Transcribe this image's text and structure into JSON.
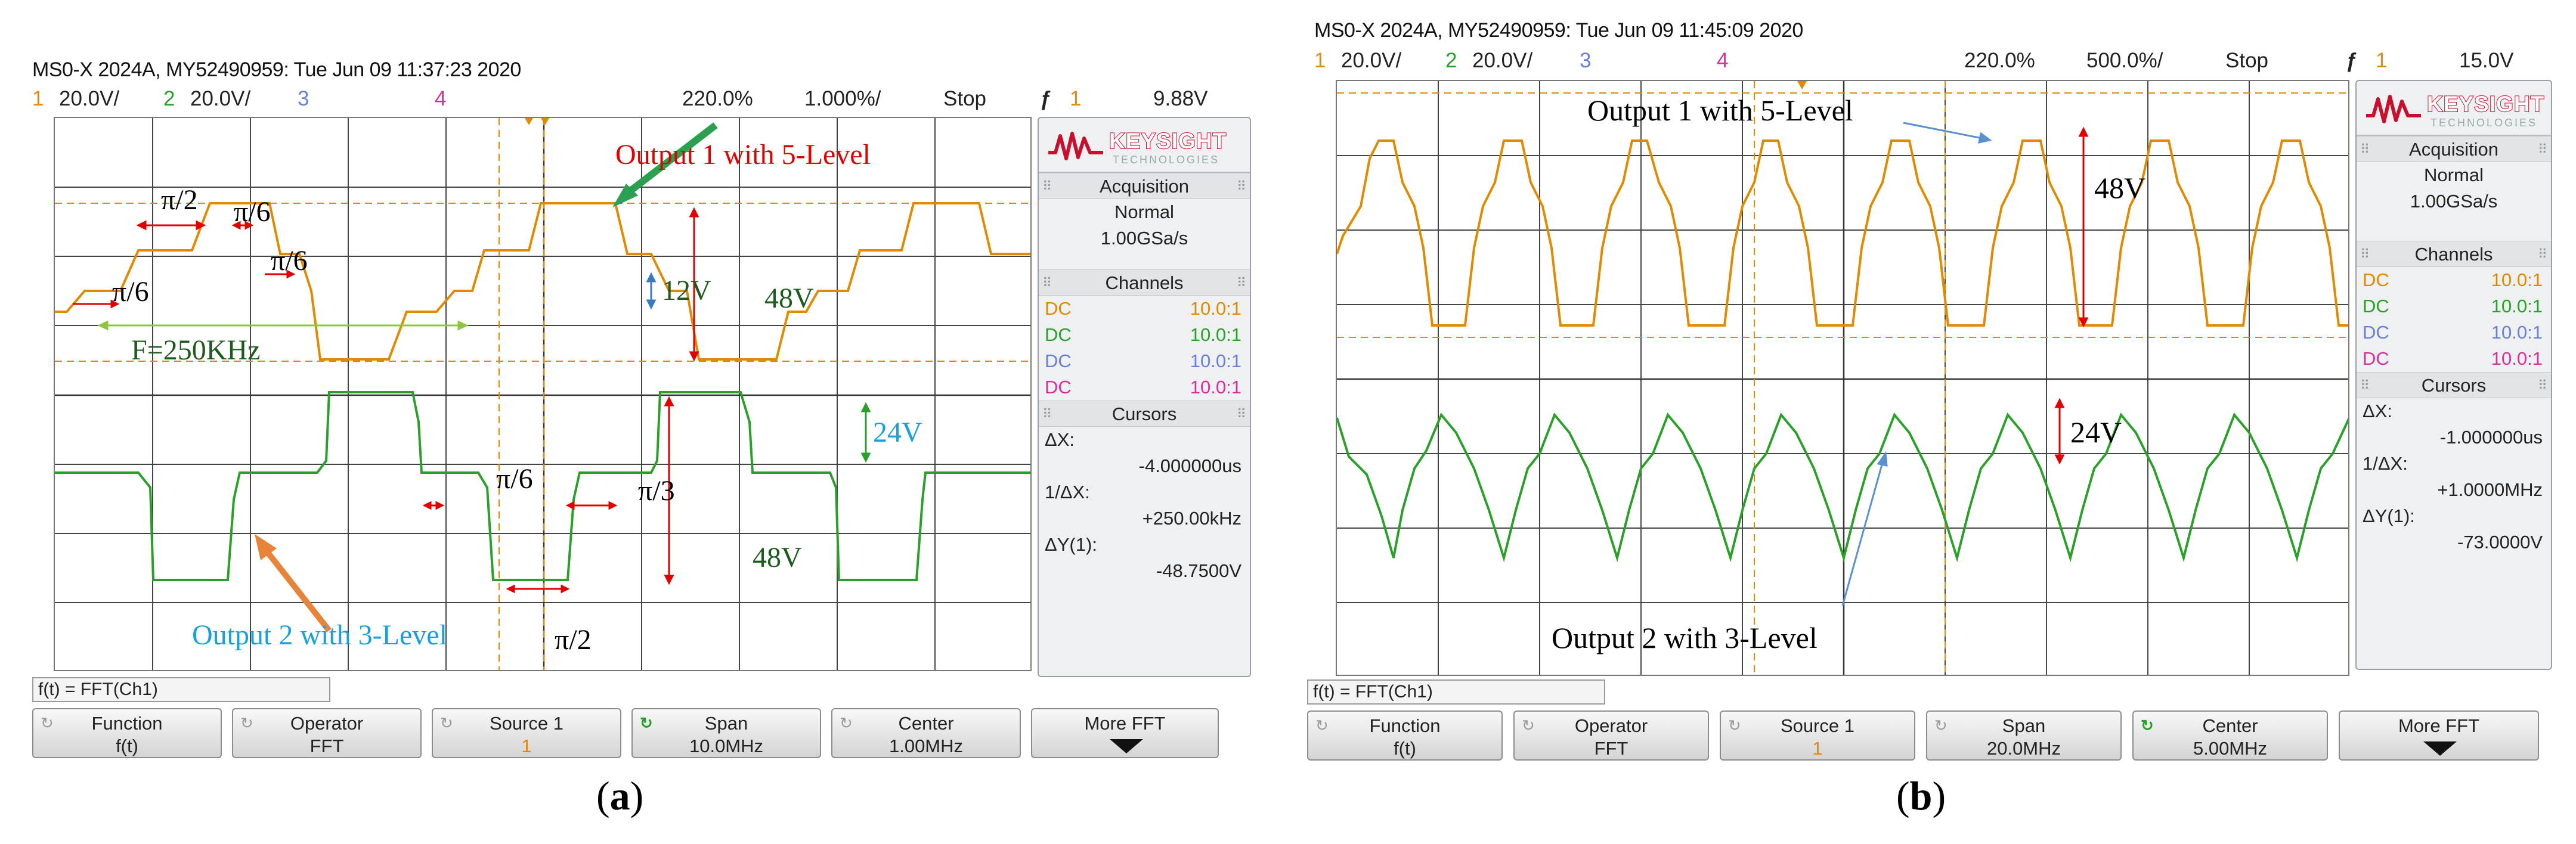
{
  "scope_a": {
    "header": "MS0-X 2024A, MY52490959: Tue Jun 09 11:37:23 2020",
    "status": {
      "ch1_num": "1",
      "ch1_scale": "20.0V/",
      "ch2_num": "2",
      "ch2_scale": "20.0V/",
      "ch3_num": "3",
      "ch4_num": "4",
      "delay": "220.0%",
      "timebase": "1.000%/",
      "run_state": "Stop",
      "trig_src": "1",
      "trig_level": "9.88V"
    },
    "panel": {
      "brand": "KEYSIGHT",
      "brand_sub": "TECHNOLOGIES",
      "acq_title": "Acquisition",
      "acq_mode": "Normal",
      "acq_rate": "1.00GSa/s",
      "ch_title": "Channels",
      "channels": [
        {
          "coupling": "DC",
          "probe": "10.0:1",
          "color": "#e08a00"
        },
        {
          "coupling": "DC",
          "probe": "10.0:1",
          "color": "#2aa02a"
        },
        {
          "coupling": "DC",
          "probe": "10.0:1",
          "color": "#6a7fd8"
        },
        {
          "coupling": "DC",
          "probe": "10.0:1",
          "color": "#d8309a"
        }
      ],
      "cur_title": "Cursors",
      "dx_label": "ΔX:",
      "dx_val": "-4.000000us",
      "inv_label": "1/ΔX:",
      "inv_val": "+250.00kHz",
      "dy_label": "ΔY(1):",
      "dy_val": "-48.7500V"
    },
    "fft_formula": "f(t) = FFT(Ch1)",
    "softkeys": [
      {
        "title": "Function",
        "value": "f(t)"
      },
      {
        "title": "Operator",
        "value": "FFT"
      },
      {
        "title": "Source 1",
        "value": "1"
      },
      {
        "title": "Span",
        "value": "10.0MHz"
      },
      {
        "title": "Center",
        "value": "1.00MHz"
      },
      {
        "title": "More FFT",
        "value": ""
      }
    ],
    "annotations": {
      "out1": "Output 1 with 5-Level",
      "out2": "Output 2 with 3-Level",
      "pi2_top": "π/2",
      "pi6_top": "π/6",
      "pi6_mid": "π/6",
      "pi6_left": "π/6",
      "freq": "F=250KHz",
      "v12": "12V",
      "v48_top": "48V",
      "v24": "24V",
      "pi6_bot": "π/6",
      "pi3_bot": "π/3",
      "v48_bot": "48V",
      "pi2_bot": "π/2"
    },
    "sublabel": "a"
  },
  "scope_b": {
    "header": "MS0-X 2024A, MY52490959: Tue Jun 09 11:45:09 2020",
    "status": {
      "ch1_num": "1",
      "ch1_scale": "20.0V/",
      "ch2_num": "2",
      "ch2_scale": "20.0V/",
      "ch3_num": "3",
      "ch4_num": "4",
      "delay": "220.0%",
      "timebase": "500.0%/",
      "run_state": "Stop",
      "trig_src": "1",
      "trig_level": "15.0V"
    },
    "panel": {
      "brand": "KEYSIGHT",
      "brand_sub": "TECHNOLOGIES",
      "acq_title": "Acquisition",
      "acq_mode": "Normal",
      "acq_rate": "1.00GSa/s",
      "ch_title": "Channels",
      "channels": [
        {
          "coupling": "DC",
          "probe": "10.0:1",
          "color": "#e08a00"
        },
        {
          "coupling": "DC",
          "probe": "10.0:1",
          "color": "#2aa02a"
        },
        {
          "coupling": "DC",
          "probe": "10.0:1",
          "color": "#6a7fd8"
        },
        {
          "coupling": "DC",
          "probe": "10.0:1",
          "color": "#d8309a"
        }
      ],
      "cur_title": "Cursors",
      "dx_label": "ΔX:",
      "dx_val": "-1.000000us",
      "inv_label": "1/ΔX:",
      "inv_val": "+1.0000MHz",
      "dy_label": "ΔY(1):",
      "dy_val": "-73.0000V"
    },
    "fft_formula": "f(t) = FFT(Ch1)",
    "softkeys": [
      {
        "title": "Function",
        "value": "f(t)"
      },
      {
        "title": "Operator",
        "value": "FFT"
      },
      {
        "title": "Source 1",
        "value": "1"
      },
      {
        "title": "Span",
        "value": "20.0MHz"
      },
      {
        "title": "Center",
        "value": "5.00MHz"
      },
      {
        "title": "More FFT",
        "value": ""
      }
    ],
    "annotations": {
      "out1": "Output 1 with 5-Level",
      "v48": "48V",
      "v24": "24V",
      "out2": "Output 2 with 3-Level"
    },
    "sublabel": "b"
  }
}
